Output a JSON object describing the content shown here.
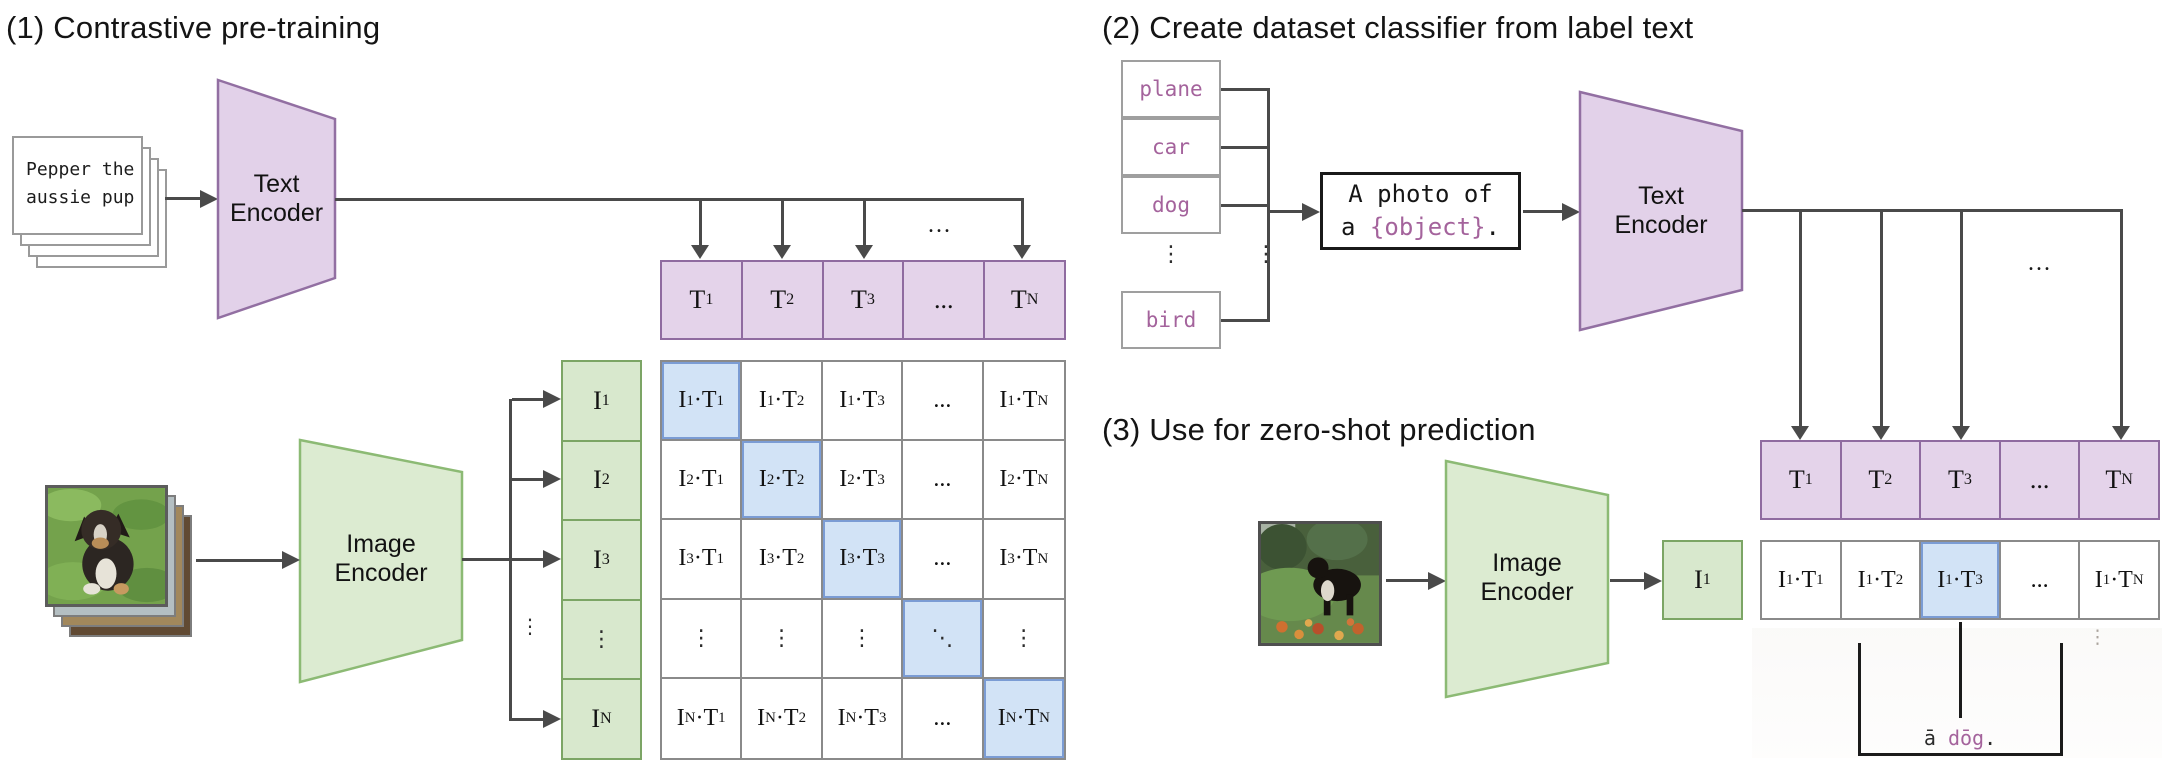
{
  "palette": {
    "purple_fill": "#e4d3ea",
    "purple_border": "#8f6ba0",
    "green_fill": "#d8e8cd",
    "green_border": "#7ca565",
    "blue_fill": "#d2e3f6",
    "blue_border": "#7b9cd4",
    "gray_border": "#8a8a8a",
    "line": "#4a4a4a",
    "mauve": "#a4639c",
    "enc_purple_fill": "#e2d1e9",
    "enc_purple_border": "#926fa2",
    "enc_green_fill": "#dcebd1",
    "enc_green_border": "#8cba74"
  },
  "section1": {
    "title": "(1) Contrastive pre-training",
    "stack": {
      "line1": "Pepper the",
      "line2": "aussie pup"
    },
    "text_encoder": {
      "line1": "Text",
      "line2": "Encoder"
    },
    "image_encoder": {
      "line1": "Image",
      "line2": "Encoder"
    },
    "ellipsis": "...",
    "side_dots": "⋮",
    "trow": [
      "T_1",
      "T_2",
      "T_3",
      "...",
      "T_N"
    ],
    "icol": [
      "I_1",
      "I_2",
      "I_3",
      "⋮",
      "I_N"
    ],
    "matrix": {
      "rows": [
        [
          "I_1·T_1",
          "I_1·T_2",
          "I_1·T_3",
          "...",
          "I_1·T_N"
        ],
        [
          "I_2·T_1",
          "I_2·T_2",
          "I_2·T_3",
          "...",
          "I_2·T_N"
        ],
        [
          "I_3·T_1",
          "I_3·T_2",
          "I_3·T_3",
          "...",
          "I_3·T_N"
        ],
        [
          "⋮",
          "⋮",
          "⋮",
          "⋱",
          "⋮"
        ],
        [
          "I_N·T_1",
          "I_N·T_2",
          "I_N·T_3",
          "...",
          "I_N·T_N"
        ]
      ]
    }
  },
  "section2": {
    "title": "(2) Create dataset classifier from label text",
    "labels": [
      "plane",
      "car",
      "dog",
      "bird"
    ],
    "label_dots": "⋮",
    "bracket_dots": "⋮",
    "prompt": {
      "line1": "A photo of",
      "line2_prefix": "a ",
      "line2_object": "{object}",
      "line2_suffix": "."
    },
    "text_encoder": {
      "line1": "Text",
      "line2": "Encoder"
    },
    "ellipsis": "...",
    "trow": [
      "T_1",
      "T_2",
      "T_3",
      "...",
      "T_N"
    ]
  },
  "section3": {
    "title": "(3) Use for zero-shot prediction",
    "image_encoder": {
      "line1": "Image",
      "line2": "Encoder"
    },
    "i_box": "I_1",
    "row": [
      "I_1·T_1",
      "I_1·T_2",
      "I_1·T_3",
      "...",
      "I_1·T_N"
    ],
    "prediction": {
      "prefix": "ā ",
      "object": "dōg",
      "suffix": ".",
      "side_dots": "⋮"
    }
  }
}
